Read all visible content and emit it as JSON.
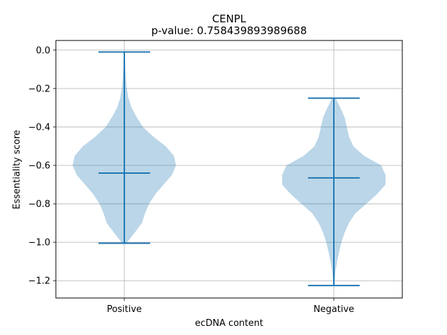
{
  "chart_data": {
    "type": "violin",
    "title": "CENPL",
    "subtitle": "p-value: 0.758439893989688",
    "xlabel": "ecDNA content",
    "ylabel": "Essentiality score",
    "categories": [
      "Positive",
      "Negative"
    ],
    "ylim": [
      -1.29,
      0.05
    ],
    "yticks": [
      0.0,
      -0.2,
      -0.4,
      -0.6,
      -0.8,
      -1.0,
      -1.2
    ],
    "ytick_labels": [
      "0.0",
      "−0.2",
      "−0.4",
      "−0.6",
      "−0.8",
      "−1.0",
      "−1.2"
    ],
    "grid": true,
    "series": [
      {
        "category": "Positive",
        "max": -0.01,
        "median": -0.64,
        "min": -1.005,
        "density": [
          [
            -0.01,
            0.002
          ],
          [
            -0.05,
            0.004
          ],
          [
            -0.1,
            0.005
          ],
          [
            -0.15,
            0.008
          ],
          [
            -0.2,
            0.012
          ],
          [
            -0.25,
            0.02
          ],
          [
            -0.3,
            0.035
          ],
          [
            -0.35,
            0.06
          ],
          [
            -0.4,
            0.09
          ],
          [
            -0.45,
            0.14
          ],
          [
            -0.5,
            0.2
          ],
          [
            -0.55,
            0.24
          ],
          [
            -0.6,
            0.25
          ],
          [
            -0.65,
            0.23
          ],
          [
            -0.7,
            0.19
          ],
          [
            -0.75,
            0.15
          ],
          [
            -0.8,
            0.12
          ],
          [
            -0.85,
            0.1
          ],
          [
            -0.9,
            0.085
          ],
          [
            -0.95,
            0.05
          ],
          [
            -1.005,
            0.01
          ]
        ]
      },
      {
        "category": "Negative",
        "max": -0.25,
        "median": -0.665,
        "min": -1.225,
        "density": [
          [
            -0.25,
            0.008
          ],
          [
            -0.3,
            0.03
          ],
          [
            -0.35,
            0.05
          ],
          [
            -0.4,
            0.06
          ],
          [
            -0.45,
            0.07
          ],
          [
            -0.5,
            0.09
          ],
          [
            -0.55,
            0.14
          ],
          [
            -0.6,
            0.22
          ],
          [
            -0.65,
            0.24
          ],
          [
            -0.7,
            0.24
          ],
          [
            -0.75,
            0.2
          ],
          [
            -0.8,
            0.15
          ],
          [
            -0.85,
            0.1
          ],
          [
            -0.9,
            0.07
          ],
          [
            -0.95,
            0.05
          ],
          [
            -1.0,
            0.035
          ],
          [
            -1.05,
            0.025
          ],
          [
            -1.1,
            0.015
          ],
          [
            -1.15,
            0.008
          ],
          [
            -1.2,
            0.004
          ],
          [
            -1.225,
            0.002
          ]
        ]
      }
    ],
    "colors": {
      "body": "#1f77b4",
      "body_opacity": 0.3,
      "lines": "#1f77b4",
      "grid": "#b0b0b0"
    }
  }
}
